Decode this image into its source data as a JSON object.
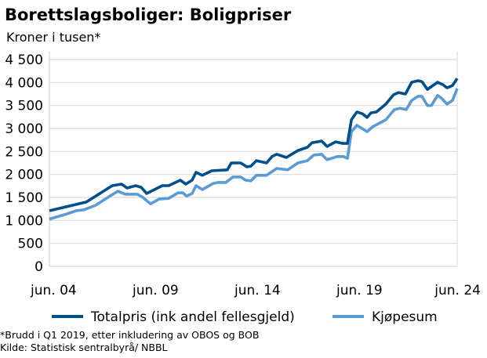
{
  "chart_data": {
    "type": "line",
    "title": "Borettslagsboliger:  Boligpriser",
    "subtitle": "Kroner i tusen*",
    "xlabel": "",
    "ylabel": "",
    "ylim": [
      0,
      4500
    ],
    "xlim": [
      2004.5,
      2024.5
    ],
    "yticks": [
      0,
      500,
      1000,
      1500,
      2000,
      2500,
      3000,
      3500,
      4000,
      4500
    ],
    "ytick_labels": [
      "0",
      "500",
      "1 000",
      "1 500",
      "2 000",
      "2 500",
      "3 000",
      "3 500",
      "4 000",
      "4 500"
    ],
    "xticks": [
      2004.5,
      2009.5,
      2014.5,
      2019.5,
      2024.5
    ],
    "xtick_labels": [
      "jun. 04",
      "jun. 09",
      "jun. 14",
      "jun. 19",
      "jun. 24"
    ],
    "grid": true,
    "legend_position": "bottom",
    "series": [
      {
        "name": "Totalpris (ink andel fellesgjeld)",
        "color": "#004f8a",
        "points": [
          [
            2004.5,
            1210
          ],
          [
            2006.31,
            1400
          ],
          [
            2007.58,
            1755
          ],
          [
            2008.04,
            1790
          ],
          [
            2008.31,
            1705
          ],
          [
            2008.73,
            1755
          ],
          [
            2009.0,
            1720
          ],
          [
            2009.27,
            1585
          ],
          [
            2010.04,
            1755
          ],
          [
            2010.35,
            1755
          ],
          [
            2010.92,
            1875
          ],
          [
            2011.19,
            1790
          ],
          [
            2011.5,
            1875
          ],
          [
            2011.69,
            2045
          ],
          [
            2012.0,
            1980
          ],
          [
            2012.46,
            2080
          ],
          [
            2013.23,
            2100
          ],
          [
            2013.42,
            2250
          ],
          [
            2013.88,
            2250
          ],
          [
            2014.19,
            2165
          ],
          [
            2014.38,
            2180
          ],
          [
            2014.65,
            2300
          ],
          [
            2015.15,
            2250
          ],
          [
            2015.42,
            2390
          ],
          [
            2015.65,
            2440
          ],
          [
            2016.12,
            2370
          ],
          [
            2016.69,
            2520
          ],
          [
            2017.15,
            2590
          ],
          [
            2017.38,
            2690
          ],
          [
            2017.85,
            2725
          ],
          [
            2018.12,
            2610
          ],
          [
            2018.54,
            2710
          ],
          [
            2018.88,
            2675
          ],
          [
            2019.12,
            2675
          ],
          [
            2019.31,
            3190
          ],
          [
            2019.58,
            3360
          ],
          [
            2019.85,
            3320
          ],
          [
            2020.08,
            3240
          ],
          [
            2020.27,
            3340
          ],
          [
            2020.54,
            3360
          ],
          [
            2021.0,
            3530
          ],
          [
            2021.38,
            3735
          ],
          [
            2021.62,
            3780
          ],
          [
            2021.96,
            3750
          ],
          [
            2022.27,
            4005
          ],
          [
            2022.58,
            4040
          ],
          [
            2022.77,
            4020
          ],
          [
            2023.04,
            3850
          ],
          [
            2023.54,
            4005
          ],
          [
            2023.81,
            3950
          ],
          [
            2024.0,
            3885
          ],
          [
            2024.27,
            3935
          ],
          [
            2024.5,
            4090
          ]
        ]
      },
      {
        "name": "Kjøpesum",
        "color": "#5b9bd5",
        "points": [
          [
            2004.5,
            1030
          ],
          [
            2005.35,
            1140
          ],
          [
            2005.81,
            1210
          ],
          [
            2006.19,
            1230
          ],
          [
            2006.77,
            1330
          ],
          [
            2007.19,
            1450
          ],
          [
            2007.85,
            1635
          ],
          [
            2008.23,
            1570
          ],
          [
            2008.81,
            1570
          ],
          [
            2009.08,
            1500
          ],
          [
            2009.46,
            1360
          ],
          [
            2009.88,
            1465
          ],
          [
            2010.35,
            1480
          ],
          [
            2010.81,
            1600
          ],
          [
            2011.04,
            1600
          ],
          [
            2011.23,
            1530
          ],
          [
            2011.5,
            1585
          ],
          [
            2011.69,
            1755
          ],
          [
            2012.0,
            1670
          ],
          [
            2012.54,
            1805
          ],
          [
            2012.77,
            1825
          ],
          [
            2013.15,
            1825
          ],
          [
            2013.5,
            1945
          ],
          [
            2013.88,
            1945
          ],
          [
            2014.12,
            1875
          ],
          [
            2014.38,
            1860
          ],
          [
            2014.65,
            1980
          ],
          [
            2015.15,
            1980
          ],
          [
            2015.65,
            2130
          ],
          [
            2016.19,
            2100
          ],
          [
            2016.69,
            2250
          ],
          [
            2017.15,
            2300
          ],
          [
            2017.46,
            2420
          ],
          [
            2017.85,
            2440
          ],
          [
            2018.12,
            2320
          ],
          [
            2018.62,
            2390
          ],
          [
            2018.92,
            2390
          ],
          [
            2019.12,
            2350
          ],
          [
            2019.31,
            2930
          ],
          [
            2019.58,
            3070
          ],
          [
            2020.08,
            2930
          ],
          [
            2020.35,
            3035
          ],
          [
            2021.0,
            3190
          ],
          [
            2021.42,
            3410
          ],
          [
            2021.69,
            3440
          ],
          [
            2022.0,
            3410
          ],
          [
            2022.27,
            3610
          ],
          [
            2022.58,
            3700
          ],
          [
            2022.77,
            3700
          ],
          [
            2023.04,
            3500
          ],
          [
            2023.23,
            3500
          ],
          [
            2023.54,
            3720
          ],
          [
            2023.73,
            3660
          ],
          [
            2024.0,
            3530
          ],
          [
            2024.27,
            3610
          ],
          [
            2024.5,
            3870
          ]
        ]
      }
    ],
    "footnotes": [
      "*Brudd i Q1 2019, etter inkludering av OBOS og BOB",
      "Kilde: Statistisk sentralbyrå/ NBBL"
    ]
  }
}
